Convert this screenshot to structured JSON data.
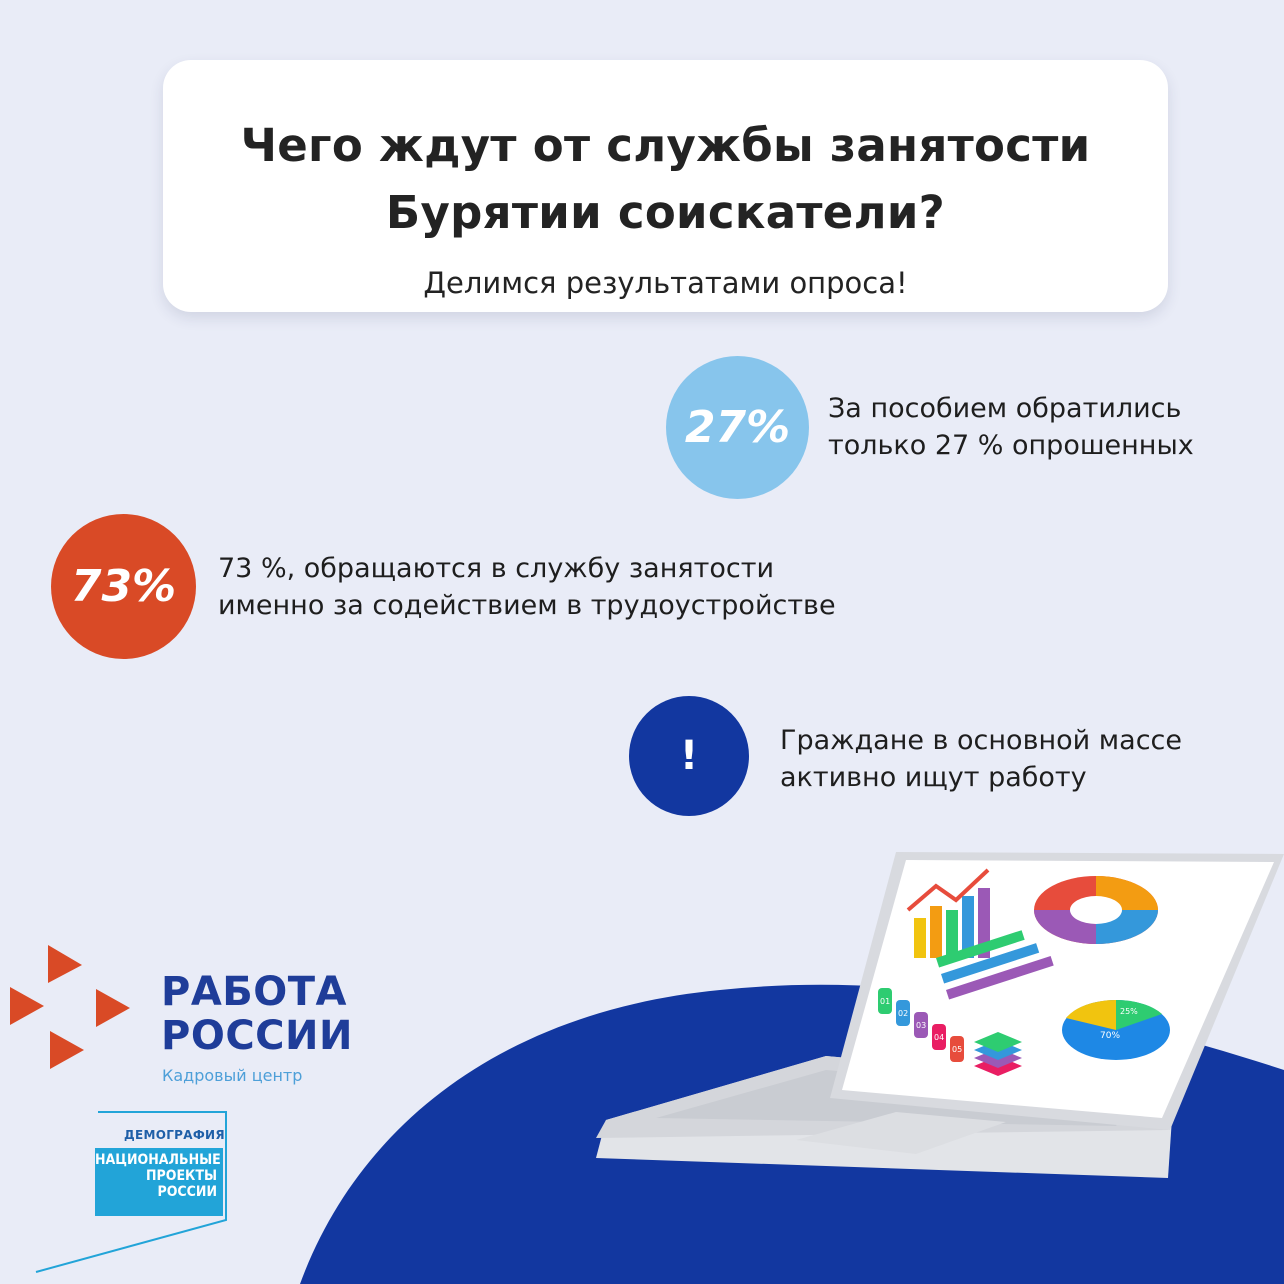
{
  "header": {
    "title_line1": "Чего ждут от службы занятости",
    "title_line2": "Бурятии соискатели?",
    "subtitle": "Делимся результатами опроса!"
  },
  "stats": [
    {
      "badge": "27%",
      "line1": "За пособием обратились",
      "line2": "только 27 % опрошенных",
      "color": "#87c5ec"
    },
    {
      "badge": "73%",
      "line1": "73 %, обращаются в службу занятости",
      "line2": "именно за содействием в трудоустройстве",
      "color": "#d94a26"
    },
    {
      "badge": "!",
      "line1": "Граждане в основной массе",
      "line2": "активно ищут работу",
      "color": "#1237a0"
    }
  ],
  "logo": {
    "line1": "РАБОТА",
    "line2": "РОССИИ",
    "sub": "Кадровый центр",
    "brand_color": "#1f3d99",
    "mark_color": "#d94a26"
  },
  "national_projects": {
    "top": "ДЕМОГРАФИЯ",
    "line1": "НАЦИОНАЛЬНЫЕ",
    "line2": "ПРОЕКТЫ",
    "line3": "РОССИИ",
    "color": "#22a4d8"
  },
  "illustration": {
    "icon": "laptop-with-charts",
    "screen_labels": [
      "01",
      "02",
      "03",
      "04",
      "05",
      "25%",
      "70%"
    ]
  }
}
